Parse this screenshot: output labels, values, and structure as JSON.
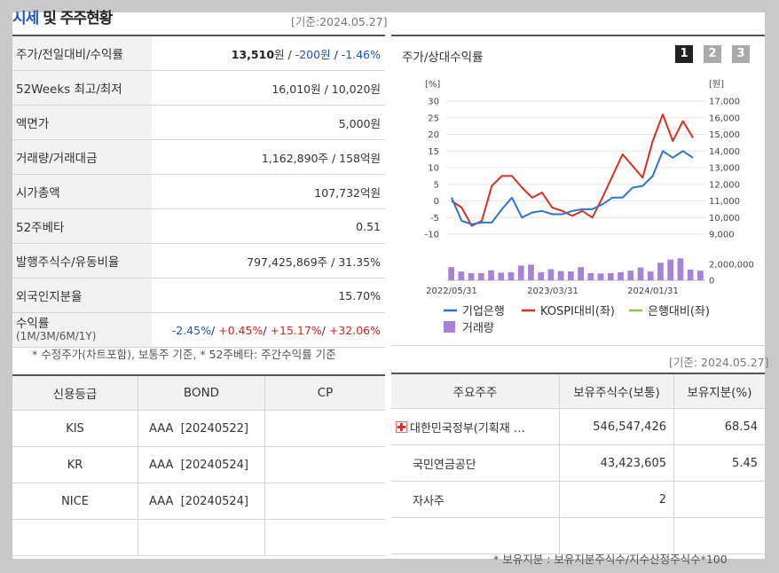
{
  "header": {
    "title_part1": "시세",
    "title_part2": " 및 주주현황",
    "date": "[기준:2024.05.27]"
  },
  "quote": {
    "row1": {
      "label": "주가/전일대비/수익률",
      "price": "13,510",
      "unit": "원",
      "sep1": " / ",
      "change": "-200원",
      "sep2": " / ",
      "pct": "-1.46%"
    },
    "row2": {
      "label": "52Weeks 최고/최저",
      "value": "16,010원 / 10,020원"
    },
    "row3": {
      "label": "액면가",
      "value": "5,000원"
    },
    "row4": {
      "label": "거래량/거래대금",
      "value": "1,162,890주 / 158억원"
    },
    "row5": {
      "label": "시가총액",
      "value": "107,732억원"
    },
    "row6": {
      "label": "52주베타",
      "value": "0.51"
    },
    "row7": {
      "label": "발행주식수/유동비율",
      "value": "797,425,869주 / 31.35%"
    },
    "row8": {
      "label": "외국인지분율",
      "value": "15.70%"
    },
    "row9": {
      "label": "수익률",
      "sublabel": "(1M/3M/6M/1Y)",
      "r1": "-2.45%",
      "r2": "+0.45%",
      "r3": "+15.17%",
      "r4": "+32.06%",
      "sep": "/ "
    }
  },
  "note1": "* 수정주가(차트포함), 보통주 기준, * 52주베타: 주간수익률 기준",
  "chart_panel": {
    "title": "주가/상대수익률",
    "pages": [
      "1",
      "2",
      "3"
    ]
  },
  "chart_data": {
    "type": "line",
    "left_unit": "[%]",
    "right_unit": "[원]",
    "left_ticks": [
      "30",
      "25",
      "20",
      "15",
      "10",
      "5",
      "0",
      "-5",
      "-10"
    ],
    "right_ticks": [
      "17,000",
      "16,000",
      "15,000",
      "14,000",
      "13,000",
      "12,000",
      "11,000",
      "10,000",
      "9,000"
    ],
    "left_ylim": [
      -10,
      30
    ],
    "right_ylim": [
      9000,
      17000
    ],
    "vol_ticks": [
      "2,000,000",
      "0"
    ],
    "vol_ylim": [
      0,
      3000000
    ],
    "x_labels": [
      "2022/05/31",
      "2023/03/31",
      "2024/01/31"
    ],
    "series": [
      {
        "name": "기업은행",
        "color": "#2e74c9",
        "values": [
          1,
          -6,
          -7,
          -6.5,
          -6.5,
          -2.5,
          1,
          -5,
          -3.5,
          -3,
          -4,
          -4,
          -3,
          -2.5,
          -2.5,
          -1,
          1,
          1,
          4,
          4.5,
          7.5,
          15,
          13,
          15,
          13
        ]
      },
      {
        "name": "KOSPI대비(좌)",
        "color": "#d4311e",
        "values": [
          0,
          -2,
          -7.5,
          -6,
          4.5,
          7.5,
          7.5,
          4,
          1,
          2.5,
          -2,
          -3,
          -4.5,
          -3,
          -5,
          1,
          7.5,
          14,
          10.5,
          7,
          18,
          26,
          18,
          24,
          19
        ]
      },
      {
        "name": "은행대비(좌)",
        "color": "#8cc63e",
        "values": []
      },
      {
        "name": "거래량",
        "color": "#a783d8",
        "values": [
          1650000,
          1100000,
          900000,
          900000,
          1250000,
          950000,
          1000000,
          1850000,
          1950000,
          1000000,
          1400000,
          1150000,
          1100000,
          1650000,
          900000,
          850000,
          900000,
          1000000,
          1200000,
          1600000,
          1100000,
          2200000,
          2600000,
          2750000,
          1350000,
          1200000
        ]
      }
    ],
    "legend": [
      "기업은행",
      "KOSPI대비(좌)",
      "은행대비(좌)",
      "거래량"
    ]
  },
  "note_date2": "[기준: 2024.05.27]",
  "credit": {
    "headers": [
      "신용등급",
      "BOND",
      "CP"
    ],
    "rows": [
      [
        "KIS",
        "AAA  [20240522]",
        ""
      ],
      [
        "KR",
        "AAA  [20240524]",
        ""
      ],
      [
        "NICE",
        "AAA  [20240524]",
        ""
      ],
      [
        "",
        "",
        ""
      ]
    ]
  },
  "holders": {
    "headers": [
      "주요주주",
      "보유주식수(보통)",
      "보유지분(%)"
    ],
    "rows": [
      [
        "대한민국정부(기획재 …",
        "546,547,426",
        "68.54"
      ],
      [
        "국민연금공단",
        "43,423,605",
        "5.45"
      ],
      [
        "자사주",
        "2",
        ""
      ],
      [
        "",
        "",
        ""
      ]
    ]
  },
  "note2": "* 보유지분 : 보유지분주식수/지수산정주식수*100"
}
